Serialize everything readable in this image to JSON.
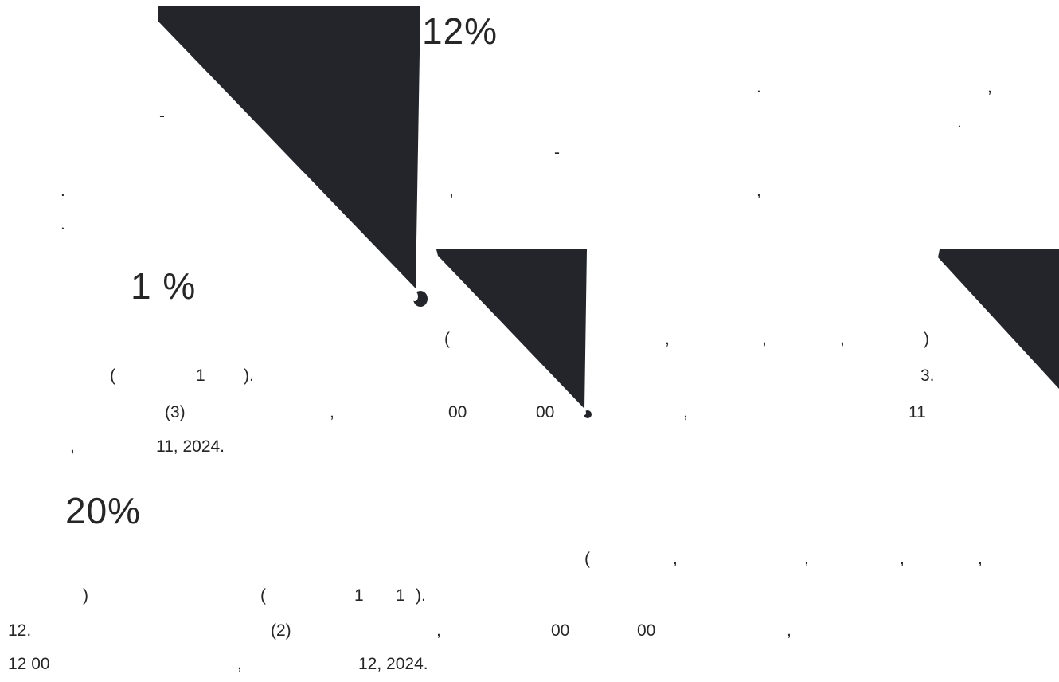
{
  "colors": {
    "background": "#ffffff",
    "text": "#262626",
    "dark_shape": "#23252b"
  },
  "promo_1": {
    "percent": "12%",
    "fragments": [
      ".",
      ",",
      "-",
      ".",
      "-",
      ".",
      ",",
      ",",
      "."
    ]
  },
  "promo_2": {
    "percent": "1 %",
    "fragments": [
      "(",
      ",",
      ",",
      ",",
      ")",
      "(",
      "1",
      ").",
      "3.",
      "(3)",
      ",",
      "00",
      "00",
      ",",
      "11",
      ",",
      "11, 2024."
    ]
  },
  "promo_3": {
    "percent": "20%",
    "fragments": [
      "(",
      ",",
      ",",
      ",",
      ",",
      ")",
      "(",
      "1",
      "1",
      ").",
      "12.",
      "(2)",
      ",",
      "00",
      "00",
      ",",
      "12 00",
      ",",
      "12, 2024."
    ]
  },
  "icons": [
    "cursor-icon",
    "cursor-icon",
    "corner-decoration"
  ]
}
